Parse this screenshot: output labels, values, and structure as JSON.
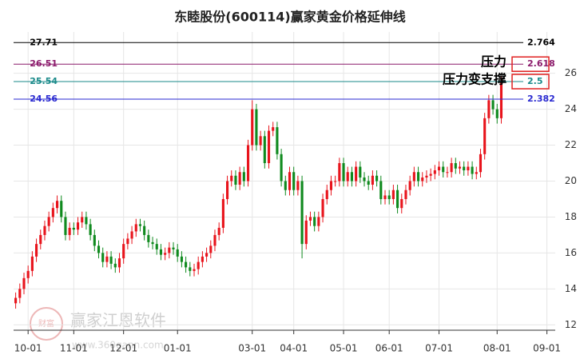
{
  "chart_data": {
    "type": "candlestick",
    "title": "东睦股份(600114)赢家黄金价格延伸线",
    "up_color": "#e8141c",
    "down_color": "#0f8a1e",
    "xlim": [
      -0.5,
      130
    ],
    "ylim": [
      11.7,
      28.3
    ],
    "xticks": [
      {
        "value": 3,
        "label": "10-01"
      },
      {
        "value": 14,
        "label": "11-01"
      },
      {
        "value": 26,
        "label": "12-01"
      },
      {
        "value": 39,
        "label": "01-01"
      },
      {
        "value": 57,
        "label": "03-01"
      },
      {
        "value": 67,
        "label": "04-01"
      },
      {
        "value": 79,
        "label": "05-01"
      },
      {
        "value": 90,
        "label": "06-01"
      },
      {
        "value": 102,
        "label": "07-01"
      },
      {
        "value": 116,
        "label": "08-01"
      },
      {
        "value": 128,
        "label": "09-01"
      }
    ],
    "yticks": [
      12,
      14,
      16,
      18,
      20,
      22,
      24,
      26
    ],
    "grid": true,
    "open": [
      13.2,
      13.5,
      14.0,
      14.6,
      15.0,
      15.8,
      16.5,
      17.0,
      17.5,
      18.0,
      18.5,
      18.9,
      18.0,
      17.0,
      17.4,
      17.3,
      17.7,
      18.0,
      17.6,
      17.0,
      16.4,
      16.0,
      15.5,
      15.8,
      15.4,
      15.2,
      15.7,
      16.5,
      16.8,
      17.2,
      17.6,
      17.5,
      17.0,
      16.6,
      16.5,
      16.2,
      15.9,
      16.0,
      16.3,
      16.2,
      15.8,
      15.5,
      15.2,
      15.0,
      15.1,
      15.5,
      15.8,
      16.0,
      16.4,
      17.0,
      17.4,
      19.0,
      20.0,
      20.3,
      19.8,
      20.5,
      20.0,
      22.0,
      24.0,
      22.0,
      22.5,
      21.0,
      22.8,
      23.0,
      21.5,
      20.0,
      19.5,
      20.5,
      19.5,
      20.0,
      16.5,
      17.8,
      18.0,
      17.5,
      18.0,
      19.0,
      19.5,
      20.0,
      20.0,
      21.0,
      20.0,
      20.5,
      20.0,
      20.8,
      20.2,
      20.0,
      19.8,
      20.3,
      20.0,
      19.0,
      19.2,
      19.0,
      19.5,
      18.5,
      19.0,
      19.5,
      20.0,
      20.5,
      20.0,
      20.2,
      20.3,
      20.4,
      20.6,
      20.8,
      20.5,
      20.5,
      21.0,
      20.7,
      20.8,
      20.6,
      20.8,
      20.4,
      20.5,
      21.5,
      23.5,
      24.5,
      24.0,
      23.5
    ],
    "high": [
      13.8,
      14.3,
      14.9,
      15.3,
      16.1,
      16.8,
      17.3,
      17.8,
      18.3,
      18.8,
      19.2,
      19.2,
      18.3,
      17.7,
      17.7,
      18.0,
      18.3,
      18.3,
      17.9,
      17.3,
      16.7,
      16.3,
      16.1,
      16.1,
      15.7,
      16.0,
      16.8,
      17.1,
      17.5,
      17.9,
      17.9,
      17.8,
      17.3,
      16.9,
      16.8,
      16.5,
      16.3,
      16.6,
      16.6,
      16.5,
      16.1,
      15.8,
      15.5,
      15.4,
      15.8,
      16.1,
      16.3,
      16.7,
      17.3,
      17.7,
      19.3,
      20.3,
      20.6,
      20.6,
      20.8,
      20.8,
      22.3,
      24.5,
      24.3,
      22.8,
      22.8,
      23.1,
      23.3,
      23.3,
      21.8,
      20.3,
      20.8,
      20.8,
      20.3,
      20.3,
      18.1,
      18.3,
      18.3,
      18.3,
      19.3,
      19.8,
      20.3,
      20.3,
      21.3,
      21.3,
      20.8,
      20.8,
      21.1,
      21.1,
      20.5,
      20.3,
      20.6,
      20.6,
      20.3,
      19.5,
      19.5,
      19.8,
      19.8,
      19.3,
      19.8,
      20.3,
      20.8,
      20.8,
      20.5,
      20.6,
      20.7,
      20.9,
      21.1,
      21.1,
      20.8,
      21.3,
      21.3,
      21.1,
      21.1,
      21.1,
      21.1,
      20.8,
      21.8,
      23.8,
      24.8,
      24.8,
      24.3,
      25.8
    ],
    "low": [
      12.9,
      13.2,
      13.7,
      14.3,
      14.7,
      15.5,
      16.2,
      16.7,
      17.2,
      17.7,
      18.2,
      17.7,
      16.7,
      16.7,
      17.0,
      17.0,
      17.4,
      17.3,
      16.7,
      16.1,
      15.7,
      15.2,
      15.2,
      15.1,
      14.9,
      14.9,
      15.4,
      16.2,
      16.5,
      16.9,
      17.2,
      16.7,
      16.3,
      16.2,
      15.9,
      15.6,
      15.6,
      15.7,
      15.9,
      15.5,
      15.2,
      14.9,
      14.7,
      14.7,
      14.8,
      15.2,
      15.5,
      15.7,
      16.1,
      16.7,
      17.1,
      18.7,
      19.7,
      19.5,
      19.5,
      19.7,
      19.7,
      21.7,
      21.7,
      21.7,
      20.7,
      20.7,
      22.5,
      21.2,
      19.7,
      19.2,
      19.2,
      19.2,
      19.2,
      15.7,
      16.2,
      17.5,
      17.2,
      17.2,
      17.7,
      18.7,
      19.2,
      19.7,
      19.7,
      19.7,
      19.7,
      19.7,
      19.7,
      19.9,
      19.7,
      19.5,
      19.5,
      19.7,
      18.7,
      18.7,
      18.7,
      18.7,
      18.2,
      18.2,
      18.7,
      19.2,
      19.7,
      19.7,
      19.7,
      19.9,
      20.0,
      20.1,
      20.3,
      20.2,
      20.2,
      20.2,
      20.4,
      20.4,
      20.3,
      20.3,
      20.1,
      20.1,
      20.2,
      21.2,
      23.2,
      23.7,
      23.2,
      23.2
    ],
    "close": [
      13.5,
      14.0,
      14.6,
      15.0,
      15.8,
      16.5,
      17.0,
      17.5,
      18.0,
      18.5,
      18.9,
      18.0,
      17.0,
      17.4,
      17.3,
      17.7,
      18.0,
      17.6,
      17.0,
      16.4,
      16.0,
      15.5,
      15.8,
      15.4,
      15.2,
      15.7,
      16.5,
      16.8,
      17.2,
      17.6,
      17.5,
      17.0,
      16.6,
      16.5,
      16.2,
      15.9,
      16.0,
      16.3,
      16.2,
      15.8,
      15.5,
      15.2,
      15.0,
      15.1,
      15.5,
      15.8,
      16.0,
      16.4,
      17.0,
      17.4,
      19.0,
      20.0,
      20.3,
      19.8,
      20.5,
      20.0,
      22.0,
      24.0,
      22.0,
      22.5,
      21.0,
      22.8,
      23.0,
      21.5,
      20.0,
      19.5,
      20.5,
      19.5,
      20.0,
      16.5,
      17.8,
      18.0,
      17.5,
      18.0,
      19.0,
      19.5,
      20.0,
      20.0,
      21.0,
      20.0,
      20.5,
      20.0,
      20.8,
      20.2,
      20.0,
      19.8,
      20.3,
      20.0,
      19.0,
      19.2,
      19.0,
      19.5,
      18.5,
      19.0,
      19.5,
      20.0,
      20.5,
      20.0,
      20.2,
      20.3,
      20.4,
      20.6,
      20.8,
      20.5,
      20.5,
      21.0,
      20.7,
      20.8,
      20.6,
      20.8,
      20.4,
      20.5,
      21.5,
      23.5,
      24.5,
      24.0,
      23.5,
      25.5
    ],
    "levels": [
      {
        "price": 27.71,
        "ratio": 2.764,
        "color": "#000000"
      },
      {
        "price": 26.51,
        "ratio": 2.618,
        "color": "#8b1a6b"
      },
      {
        "price": 25.54,
        "ratio": 2.5,
        "color": "#1a8a8a"
      },
      {
        "price": 24.56,
        "ratio": 2.382,
        "color": "#2a2ad0"
      }
    ],
    "annotations": [
      {
        "text": "压力",
        "level": 1
      },
      {
        "text": "压力变支撑",
        "level": 2
      }
    ],
    "watermark": {
      "text": "赢家江恩软件",
      "url": "www.360gann.com",
      "logo": "财富"
    }
  }
}
